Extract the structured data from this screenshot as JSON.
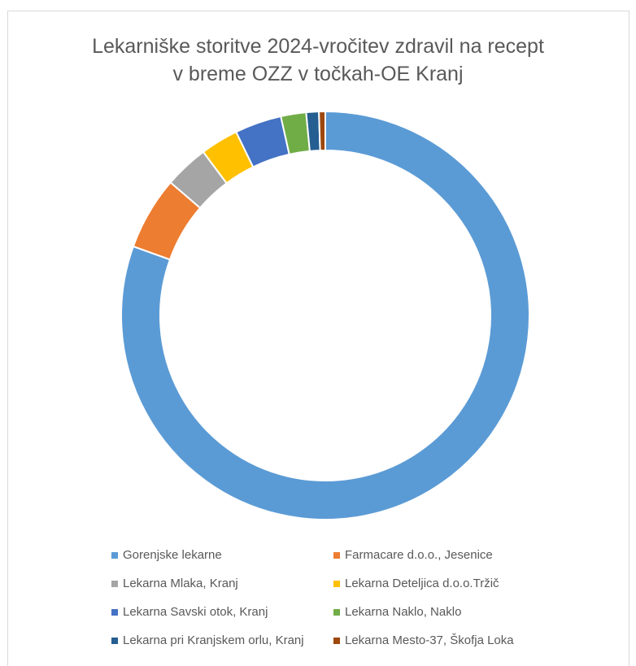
{
  "chart_data": {
    "type": "donut",
    "title_lines": [
      "Lekarniške storitve 2024-vročitev zdravil na recept",
      "v breme OZZ v točkah-OE Kranj"
    ],
    "series": [
      {
        "label": "Gorenjske lekarne",
        "value": 80.5,
        "color": "#5b9bd5"
      },
      {
        "label": "Farmacare d.o.o., Jesenice",
        "value": 5.8,
        "color": "#ed7d31"
      },
      {
        "label": "Lekarna Mlaka, Kranj",
        "value": 3.5,
        "color": "#a5a5a5"
      },
      {
        "label": "Lekarna Deteljica d.o.o.Tržič",
        "value": 3.0,
        "color": "#ffc000"
      },
      {
        "label": "Lekarna Savski otok, Kranj",
        "value": 3.7,
        "color": "#4472c4"
      },
      {
        "label": "Lekarna Naklo, Naklo",
        "value": 2.0,
        "color": "#70ad47"
      },
      {
        "label": "Lekarna pri Kranjskem orlu, Kranj",
        "value": 1.0,
        "color": "#255e91"
      },
      {
        "label": "Lekarna Mesto-37, Škofja Loka",
        "value": 0.5,
        "color": "#9e480e"
      }
    ],
    "legend_position": "bottom",
    "legend_columns": 2
  }
}
